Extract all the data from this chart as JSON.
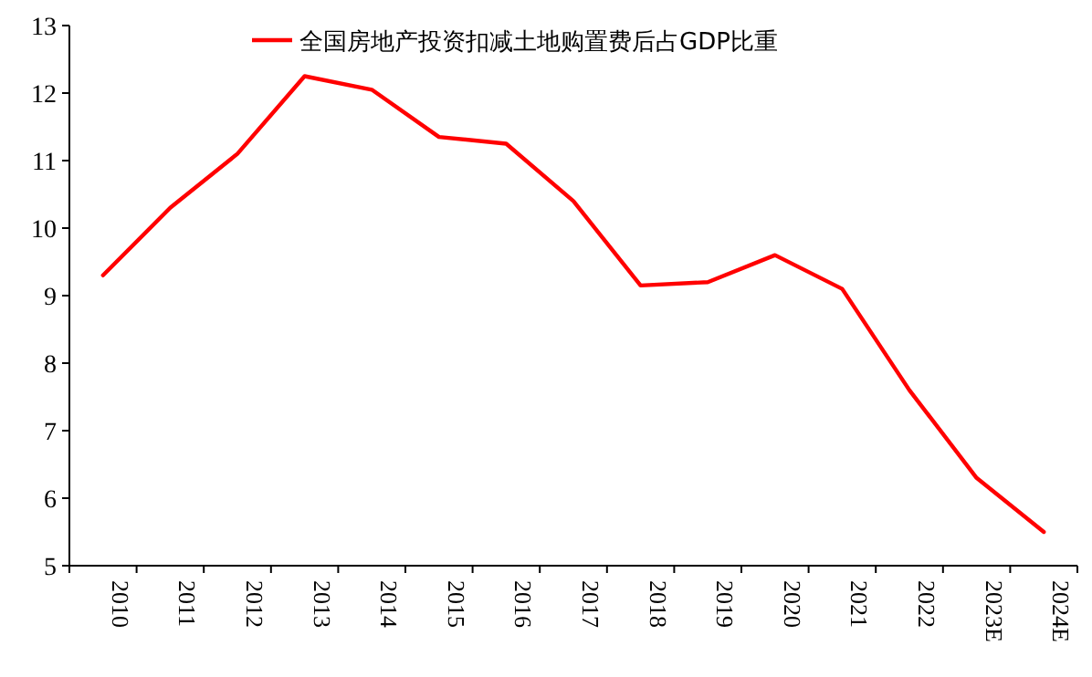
{
  "chart_data": {
    "type": "line",
    "categories": [
      "2010",
      "2011",
      "2012",
      "2013",
      "2014",
      "2015",
      "2016",
      "2017",
      "2018",
      "2019",
      "2020",
      "2021",
      "2022",
      "2023E",
      "2024E"
    ],
    "series": [
      {
        "name": "全国房地产投资扣减土地购置费后占GDP比重",
        "color": "#ff0000",
        "values": [
          9.3,
          10.3,
          11.1,
          12.25,
          12.05,
          11.35,
          11.25,
          10.4,
          9.15,
          9.2,
          9.6,
          9.1,
          7.6,
          6.3,
          5.5
        ]
      }
    ],
    "ylim": [
      5,
      13
    ],
    "yticks": [
      5,
      6,
      7,
      8,
      9,
      10,
      11,
      12,
      13
    ],
    "grid": false,
    "legend": "top",
    "marker": "none",
    "line_style": "solid"
  }
}
